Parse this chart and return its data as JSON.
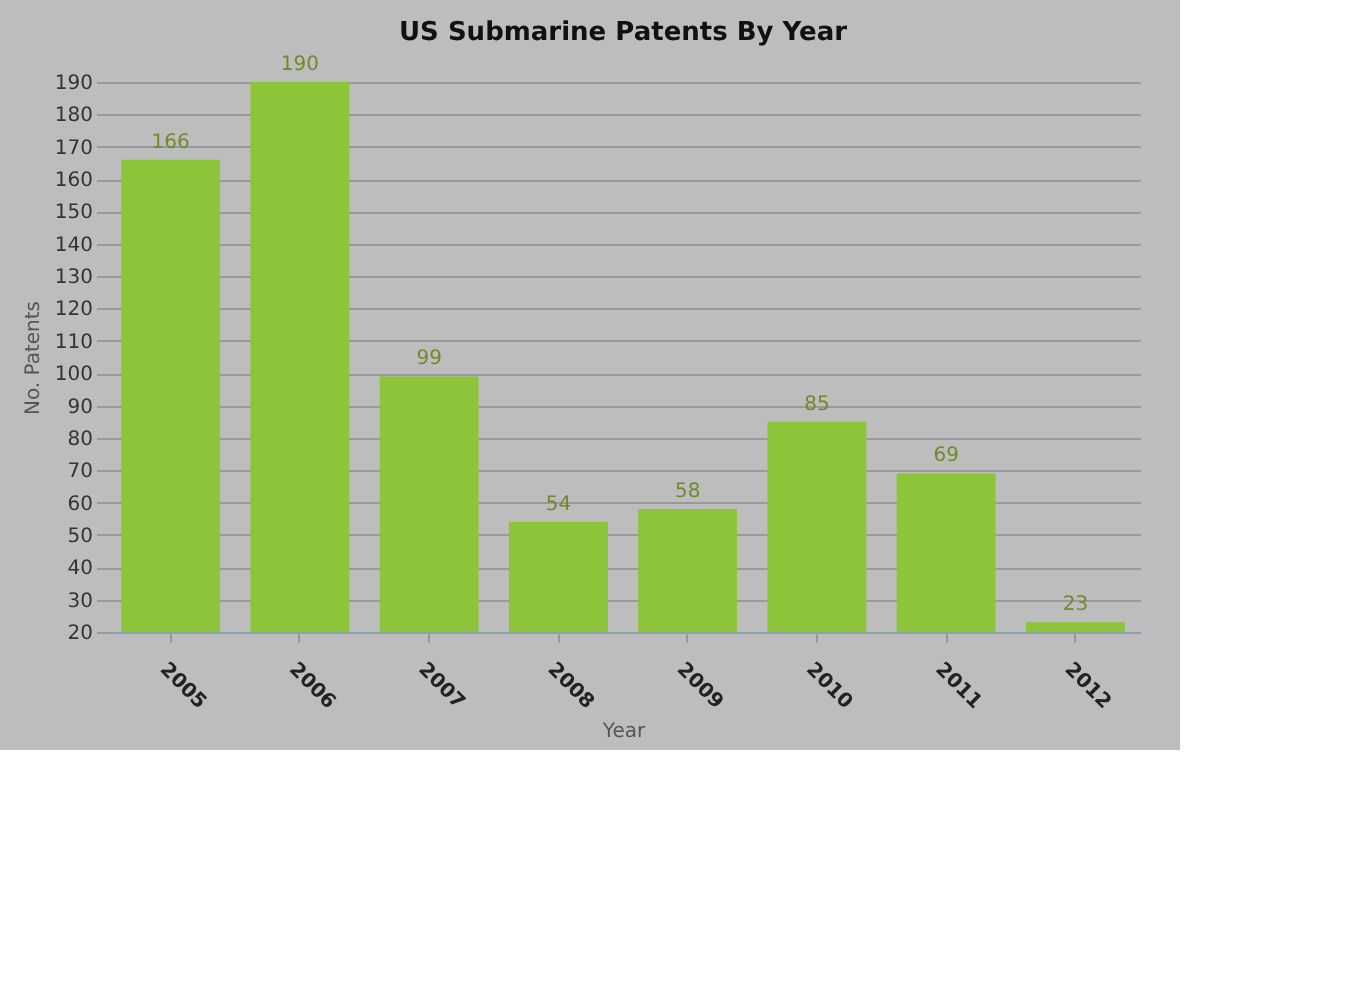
{
  "chart_data": {
    "type": "bar",
    "title": "US Submarine Patents By Year",
    "xlabel": "Year",
    "ylabel": "No. Patents",
    "categories": [
      "2005",
      "2006",
      "2007",
      "2008",
      "2009",
      "2010",
      "2011",
      "2012"
    ],
    "values": [
      166,
      190,
      99,
      54,
      58,
      85,
      69,
      23
    ],
    "color": "#8cc43a",
    "ylim": [
      20,
      190
    ],
    "yticks": [
      20,
      30,
      40,
      50,
      60,
      70,
      80,
      90,
      100,
      110,
      120,
      130,
      140,
      150,
      160,
      170,
      180,
      190
    ],
    "grid": "y",
    "data_labels": true
  }
}
